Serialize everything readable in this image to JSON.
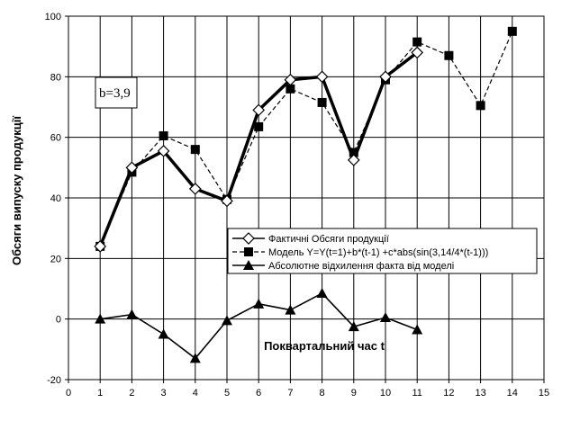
{
  "chart_data": {
    "type": "line",
    "title": "",
    "xlabel": "Поквартальний час t",
    "ylabel": "Обсяги випуску продукції",
    "xlim": [
      0,
      15
    ],
    "ylim": [
      -20,
      100
    ],
    "x_ticks": [
      0,
      1,
      2,
      3,
      4,
      5,
      6,
      7,
      8,
      9,
      10,
      11,
      12,
      13,
      14,
      15
    ],
    "y_ticks": [
      -20,
      0,
      20,
      40,
      60,
      80,
      100
    ],
    "grid": true,
    "legend_position": "lower-right",
    "annotation": "b=3,9",
    "series": [
      {
        "name": "Фактичні Обсяги продукції",
        "marker": "diamond-open",
        "line_style": "solid-thick",
        "color": "#000000",
        "x": [
          1,
          2,
          3,
          4,
          5,
          6,
          7,
          8,
          9,
          10,
          11
        ],
        "values": [
          24,
          50,
          55.5,
          43,
          39,
          69,
          79,
          80,
          52.5,
          80,
          88
        ]
      },
      {
        "name": "Модель Y=Y(t=1)+b*(t-1) +c*abs(sin(3,14/4*(t-1)))",
        "marker": "square-filled",
        "line_style": "dashed",
        "color": "#000000",
        "x": [
          1,
          2,
          3,
          4,
          5,
          6,
          7,
          8,
          9,
          10,
          11,
          12,
          13,
          14
        ],
        "values": [
          24,
          48.5,
          60.5,
          56,
          39.5,
          63.5,
          76,
          71.5,
          55,
          79,
          91.5,
          87,
          70.5,
          95
        ]
      },
      {
        "name": "Абсолютне відхилення факта від моделі",
        "marker": "triangle-filled",
        "line_style": "solid",
        "color": "#000000",
        "x": [
          1,
          2,
          3,
          4,
          5,
          6,
          7,
          8,
          9,
          10,
          11
        ],
        "values": [
          0,
          1.5,
          -5,
          -13,
          -0.5,
          5,
          3,
          8.5,
          -2.5,
          0.5,
          -3.5
        ]
      }
    ]
  }
}
